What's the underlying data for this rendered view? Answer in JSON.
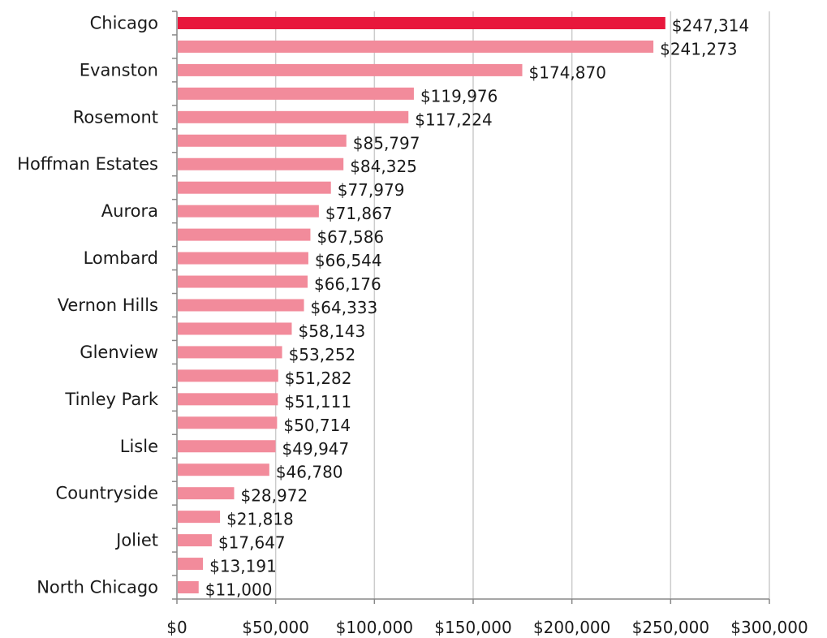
{
  "chart_data": {
    "type": "bar",
    "orientation": "horizontal",
    "categories": [
      "Chicago",
      "",
      "Evanston",
      "",
      "Rosemont",
      "",
      "Hoffman Estates",
      "",
      "Aurora",
      "",
      "Lombard",
      "",
      "Vernon Hills",
      "",
      "Glenview",
      "",
      "Tinley Park",
      "",
      "Lisle",
      "",
      "Countryside",
      "",
      "Joliet",
      "",
      "North Chicago"
    ],
    "values": [
      247314,
      241273,
      174870,
      119976,
      117224,
      85797,
      84325,
      77979,
      71867,
      67586,
      66544,
      66176,
      64333,
      58143,
      53252,
      51282,
      51111,
      50714,
      49947,
      46780,
      28972,
      21818,
      17647,
      13191,
      11000
    ],
    "value_labels": [
      "$247,314",
      "$241,273",
      "$174,870",
      "$119,976",
      "$117,224",
      "$85,797",
      "$84,325",
      "$77,979",
      "$71,867",
      "$67,586",
      "$66,544",
      "$66,176",
      "$64,333",
      "$58,143",
      "$53,252",
      "$51,282",
      "$51,111",
      "$50,714",
      "$49,947",
      "$46,780",
      "$28,972",
      "$21,818",
      "$17,647",
      "$13,191",
      "$11,000"
    ],
    "highlight_index": 0,
    "xlim": [
      0,
      300000
    ],
    "xticks": [
      0,
      50000,
      100000,
      150000,
      200000,
      250000,
      300000
    ],
    "xtick_labels": [
      "$0",
      "$50,000",
      "$100,000",
      "$150,000",
      "$200,000",
      "$250,000",
      "$300,000"
    ],
    "grid": "vertical",
    "legend": "none"
  },
  "colors": {
    "highlight": "#e8173c",
    "bar": "#f28b9b",
    "grid": "#cccccc",
    "axis": "#888888"
  }
}
